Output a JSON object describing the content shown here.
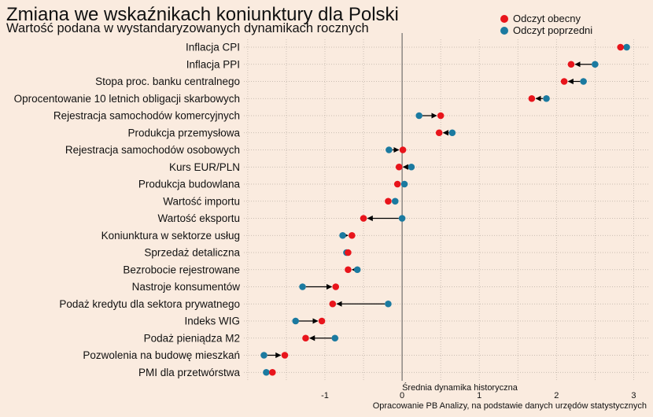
{
  "header": {
    "title": "Zmiana we wskaźnikach koniunktury dla Polski",
    "subtitle": "Wartość podana w wystandaryzowanych dynamikach rocznych"
  },
  "legend": {
    "current_label": "Odczyt obecny",
    "previous_label": "Odczyt poprzedni"
  },
  "colors": {
    "current": "#e8141b",
    "previous": "#1b7aa0",
    "background": "#faebdf",
    "arrow": "#000000"
  },
  "caption": "Opracowanie  PB Analizy, na podstawie danych urzędów statystycznych",
  "chart_data": {
    "type": "scatter",
    "subtype": "dumbbell-arrow",
    "title": "Zmiana we wskaźnikach koniunktury dla Polski",
    "subtitle": "Wartość podana w wystandaryzowanych dynamikach rocznych",
    "xlim": [
      -2.05,
      3.2
    ],
    "xticks": [
      -1,
      0,
      1,
      2,
      3
    ],
    "xtick_labels": [
      "-1",
      "0",
      "1",
      "2",
      "3"
    ],
    "reference_line": {
      "x": 0,
      "label": "Średnia dynamika historyczna"
    },
    "grid": true,
    "legend_position": "top-right",
    "categories": [
      "Inflacja CPI",
      "Inflacja PPI",
      "Stopa proc. banku centralnego",
      "Oprocentowanie 10 letnich obligacji skarbowych",
      "Rejestracja samochodów komercyjnych",
      "Produkcja przemysłowa",
      "Rejestracja samochodów osobowych",
      "Kurs EUR/PLN",
      "Produkcja budowlana",
      "Wartość importu",
      "Wartość eksportu",
      "Koniunktura w sektorze usług",
      "Sprzedaż detaliczna",
      "Bezrobocie rejestrowane",
      "Nastroje konsumentów",
      "Podaż kredytu dla sektora prywatnego",
      "Indeks WIG",
      "Podaż pieniądza M2",
      "Pozwolenia na budowę mieszkań",
      "PMI dla przetwórstwa"
    ],
    "series": [
      {
        "name": "Odczyt obecny",
        "values": [
          2.83,
          2.19,
          2.1,
          1.68,
          0.5,
          0.48,
          0.01,
          -0.04,
          -0.06,
          -0.18,
          -0.5,
          -0.65,
          -0.7,
          -0.7,
          -0.86,
          -0.9,
          -1.04,
          -1.25,
          -1.52,
          -1.68
        ]
      },
      {
        "name": "Odczyt poprzedni",
        "values": [
          2.91,
          2.5,
          2.35,
          1.87,
          0.22,
          0.65,
          -0.17,
          0.12,
          0.03,
          -0.09,
          0.0,
          -0.77,
          -0.72,
          -0.58,
          -1.29,
          -0.18,
          -1.38,
          -0.87,
          -1.79,
          -1.76
        ]
      }
    ]
  }
}
